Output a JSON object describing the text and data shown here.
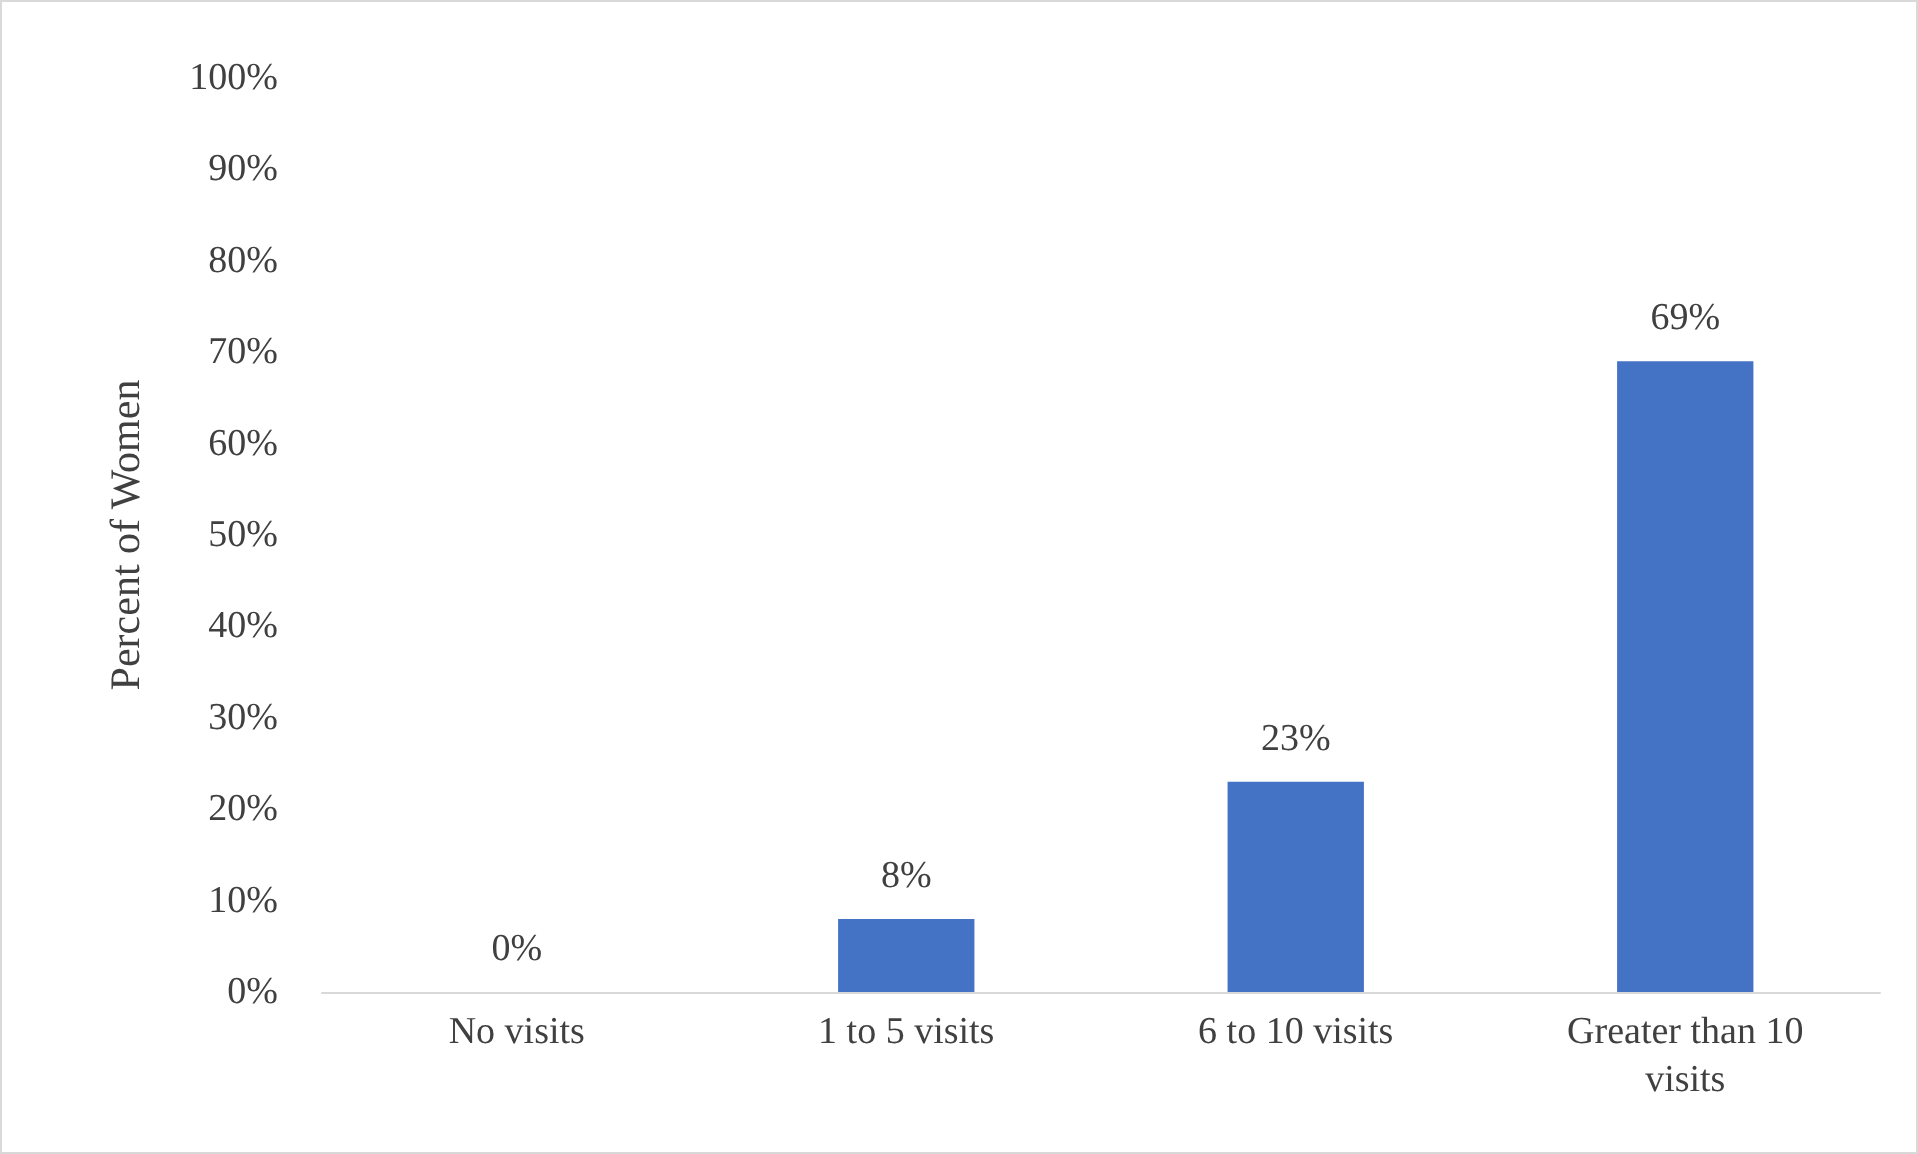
{
  "chart_data": {
    "type": "bar",
    "ylabel": "Percent of Women",
    "categories": [
      "No visits",
      "1 to 5 visits",
      "6 to 10 visits",
      "Greater than 10 visits"
    ],
    "values": [
      0,
      8,
      23,
      69
    ],
    "color": "#4472c4",
    "ylim": [
      0,
      100
    ],
    "yticks": [
      {
        "value": 0,
        "label": "0%"
      },
      {
        "value": 10,
        "label": "10%"
      },
      {
        "value": 20,
        "label": "20%"
      },
      {
        "value": 30,
        "label": "30%"
      },
      {
        "value": 40,
        "label": "40%"
      },
      {
        "value": 50,
        "label": "50%"
      },
      {
        "value": 60,
        "label": "60%"
      },
      {
        "value": 70,
        "label": "70%"
      },
      {
        "value": 80,
        "label": "80%"
      },
      {
        "value": 90,
        "label": "90%"
      },
      {
        "value": 100,
        "label": "100%"
      }
    ],
    "value_labels": [
      "0%",
      "8%",
      "23%",
      "69%"
    ]
  }
}
